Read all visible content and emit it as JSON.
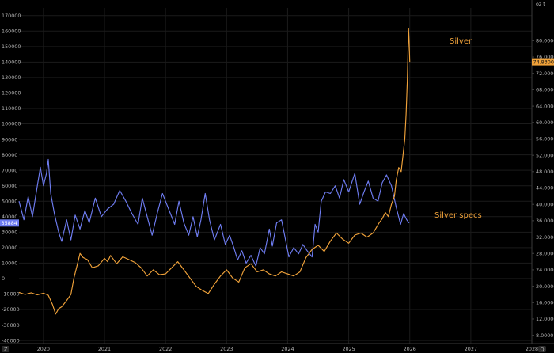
{
  "chart_data": {
    "type": "line",
    "title": "",
    "xlabel": "",
    "ylabel_left": "",
    "ylabel_right": "",
    "right_axis_unit": "oz t",
    "grid": true,
    "x_ticks": [
      "2020",
      "2021",
      "2022",
      "2023",
      "2024",
      "2025",
      "2026",
      "2027",
      "2028"
    ],
    "x_range": [
      2019.6,
      2028.0
    ],
    "left_axis": {
      "range": [
        -42000,
        175000
      ],
      "ticks": [
        -40000,
        -30000,
        -20000,
        -10000,
        0,
        10000,
        20000,
        30000,
        40000,
        50000,
        60000,
        70000,
        80000,
        90000,
        100000,
        110000,
        120000,
        130000,
        140000,
        150000,
        160000,
        170000
      ]
    },
    "right_axis": {
      "range": [
        6.0,
        88.0
      ],
      "ticks": [
        "8.0000",
        "12.0000",
        "16.0000",
        "20.0000",
        "24.0000",
        "28.0000",
        "32.0000",
        "36.0000",
        "40.0000",
        "44.0000",
        "48.0000",
        "52.0000",
        "56.0000",
        "60.0000",
        "64.0000",
        "68.0000",
        "72.0000",
        "76.0000",
        "80.0000"
      ]
    },
    "series": [
      {
        "name": "Silver specs",
        "axis": "left",
        "color": "#6e7cf0",
        "last_value_label": "35884",
        "points": [
          [
            2019.6,
            50000
          ],
          [
            2019.68,
            38000
          ],
          [
            2019.75,
            53000
          ],
          [
            2019.82,
            40000
          ],
          [
            2019.88,
            55000
          ],
          [
            2019.95,
            72000
          ],
          [
            2020.0,
            60000
          ],
          [
            2020.05,
            68000
          ],
          [
            2020.08,
            77000
          ],
          [
            2020.12,
            55000
          ],
          [
            2020.18,
            42000
          ],
          [
            2020.25,
            30000
          ],
          [
            2020.3,
            24000
          ],
          [
            2020.38,
            38000
          ],
          [
            2020.45,
            25000
          ],
          [
            2020.52,
            41000
          ],
          [
            2020.6,
            32000
          ],
          [
            2020.68,
            44000
          ],
          [
            2020.75,
            36000
          ],
          [
            2020.85,
            52000
          ],
          [
            2020.95,
            40000
          ],
          [
            2021.05,
            45000
          ],
          [
            2021.15,
            48000
          ],
          [
            2021.25,
            57000
          ],
          [
            2021.35,
            50000
          ],
          [
            2021.45,
            42000
          ],
          [
            2021.55,
            35000
          ],
          [
            2021.62,
            52000
          ],
          [
            2021.7,
            40000
          ],
          [
            2021.78,
            28000
          ],
          [
            2021.87,
            43000
          ],
          [
            2021.95,
            55000
          ],
          [
            2022.05,
            45000
          ],
          [
            2022.15,
            35000
          ],
          [
            2022.22,
            50000
          ],
          [
            2022.3,
            36000
          ],
          [
            2022.38,
            28000
          ],
          [
            2022.45,
            40000
          ],
          [
            2022.52,
            27000
          ],
          [
            2022.58,
            38000
          ],
          [
            2022.65,
            55000
          ],
          [
            2022.72,
            38000
          ],
          [
            2022.8,
            25000
          ],
          [
            2022.9,
            35000
          ],
          [
            2022.98,
            22000
          ],
          [
            2023.05,
            28000
          ],
          [
            2023.12,
            20000
          ],
          [
            2023.18,
            12000
          ],
          [
            2023.25,
            18000
          ],
          [
            2023.32,
            10000
          ],
          [
            2023.4,
            15000
          ],
          [
            2023.48,
            8000
          ],
          [
            2023.55,
            20000
          ],
          [
            2023.62,
            16000
          ],
          [
            2023.7,
            32000
          ],
          [
            2023.75,
            21000
          ],
          [
            2023.82,
            36000
          ],
          [
            2023.9,
            38000
          ],
          [
            2023.95,
            28000
          ],
          [
            2024.02,
            14000
          ],
          [
            2024.1,
            20000
          ],
          [
            2024.18,
            16000
          ],
          [
            2024.25,
            22000
          ],
          [
            2024.32,
            18000
          ],
          [
            2024.4,
            14000
          ],
          [
            2024.45,
            35000
          ],
          [
            2024.5,
            30000
          ],
          [
            2024.55,
            50000
          ],
          [
            2024.62,
            56000
          ],
          [
            2024.7,
            55000
          ],
          [
            2024.78,
            60000
          ],
          [
            2024.85,
            52000
          ],
          [
            2024.92,
            64000
          ],
          [
            2025.0,
            56000
          ],
          [
            2025.05,
            62000
          ],
          [
            2025.1,
            68000
          ],
          [
            2025.18,
            48000
          ],
          [
            2025.25,
            56000
          ],
          [
            2025.32,
            63000
          ],
          [
            2025.4,
            52000
          ],
          [
            2025.48,
            50000
          ],
          [
            2025.55,
            62000
          ],
          [
            2025.62,
            67000
          ],
          [
            2025.7,
            60000
          ],
          [
            2025.78,
            46000
          ],
          [
            2025.85,
            35000
          ],
          [
            2025.9,
            42000
          ],
          [
            2025.95,
            38000
          ],
          [
            2025.99,
            35884
          ]
        ]
      },
      {
        "name": "Silver",
        "axis": "right",
        "color": "#f0a23a",
        "last_value_label": "74.8300",
        "points": [
          [
            2019.6,
            18.5
          ],
          [
            2019.7,
            18.0
          ],
          [
            2019.8,
            18.4
          ],
          [
            2019.9,
            17.9
          ],
          [
            2020.0,
            18.3
          ],
          [
            2020.08,
            17.8
          ],
          [
            2020.15,
            15.5
          ],
          [
            2020.2,
            13.2
          ],
          [
            2020.25,
            14.5
          ],
          [
            2020.3,
            15.0
          ],
          [
            2020.38,
            16.5
          ],
          [
            2020.45,
            18.0
          ],
          [
            2020.5,
            22.0
          ],
          [
            2020.55,
            25.0
          ],
          [
            2020.6,
            28.0
          ],
          [
            2020.65,
            27.0
          ],
          [
            2020.72,
            26.5
          ],
          [
            2020.8,
            24.5
          ],
          [
            2020.9,
            25.0
          ],
          [
            2021.0,
            26.8
          ],
          [
            2021.05,
            26.0
          ],
          [
            2021.1,
            27.5
          ],
          [
            2021.2,
            25.5
          ],
          [
            2021.3,
            27.2
          ],
          [
            2021.4,
            26.5
          ],
          [
            2021.5,
            25.8
          ],
          [
            2021.6,
            24.5
          ],
          [
            2021.7,
            22.5
          ],
          [
            2021.8,
            24.0
          ],
          [
            2021.9,
            22.8
          ],
          [
            2022.0,
            23.0
          ],
          [
            2022.1,
            24.5
          ],
          [
            2022.2,
            26.0
          ],
          [
            2022.3,
            24.0
          ],
          [
            2022.4,
            22.0
          ],
          [
            2022.5,
            20.0
          ],
          [
            2022.6,
            19.0
          ],
          [
            2022.7,
            18.2
          ],
          [
            2022.8,
            20.5
          ],
          [
            2022.9,
            22.5
          ],
          [
            2023.0,
            24.0
          ],
          [
            2023.1,
            22.0
          ],
          [
            2023.2,
            21.0
          ],
          [
            2023.3,
            24.5
          ],
          [
            2023.4,
            25.5
          ],
          [
            2023.5,
            23.5
          ],
          [
            2023.6,
            24.0
          ],
          [
            2023.7,
            23.0
          ],
          [
            2023.8,
            22.5
          ],
          [
            2023.9,
            23.5
          ],
          [
            2024.0,
            23.0
          ],
          [
            2024.1,
            22.5
          ],
          [
            2024.2,
            23.5
          ],
          [
            2024.3,
            27.0
          ],
          [
            2024.4,
            29.0
          ],
          [
            2024.5,
            30.0
          ],
          [
            2024.6,
            28.5
          ],
          [
            2024.7,
            31.0
          ],
          [
            2024.8,
            33.0
          ],
          [
            2024.9,
            31.5
          ],
          [
            2025.0,
            30.5
          ],
          [
            2025.1,
            32.5
          ],
          [
            2025.2,
            33.0
          ],
          [
            2025.3,
            32.0
          ],
          [
            2025.4,
            33.0
          ],
          [
            2025.5,
            35.5
          ],
          [
            2025.55,
            36.5
          ],
          [
            2025.6,
            38.0
          ],
          [
            2025.65,
            37.0
          ],
          [
            2025.7,
            40.0
          ],
          [
            2025.75,
            42.0
          ],
          [
            2025.78,
            46.0
          ],
          [
            2025.82,
            49.0
          ],
          [
            2025.86,
            48.0
          ],
          [
            2025.89,
            52.0
          ],
          [
            2025.92,
            56.0
          ],
          [
            2025.94,
            62.0
          ],
          [
            2025.96,
            70.0
          ],
          [
            2025.98,
            83.0
          ],
          [
            2025.99,
            80.0
          ],
          [
            2026.0,
            74.83
          ]
        ]
      }
    ],
    "annotations": [
      {
        "text": "Silver",
        "series": "Silver",
        "color": "#f0a23a"
      },
      {
        "text": "Silver specs",
        "series": "Silver specs",
        "color": "#f0a23a"
      }
    ],
    "legend": "inline annotations"
  },
  "footer": {
    "left_button_label": "Z",
    "right_button_label": "Q"
  }
}
